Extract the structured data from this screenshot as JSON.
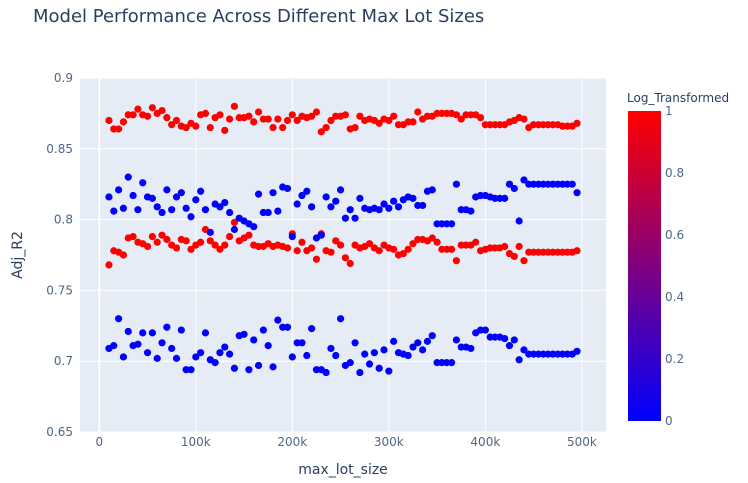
{
  "chart_data": {
    "type": "scatter",
    "title": "Model Performance Across Different Max Lot Sizes",
    "xlabel": "max_lot_size",
    "ylabel": "Adj_R2",
    "xlim": [
      -20000,
      525000
    ],
    "ylim": [
      0.65,
      0.9
    ],
    "x_ticks": [
      {
        "v": 0,
        "label": "0"
      },
      {
        "v": 100000,
        "label": "100k"
      },
      {
        "v": 200000,
        "label": "200k"
      },
      {
        "v": 300000,
        "label": "300k"
      },
      {
        "v": 400000,
        "label": "400k"
      },
      {
        "v": 500000,
        "label": "500k"
      }
    ],
    "y_ticks": [
      {
        "v": 0.65,
        "label": "0.65"
      },
      {
        "v": 0.7,
        "label": "0.7"
      },
      {
        "v": 0.75,
        "label": "0.75"
      },
      {
        "v": 0.8,
        "label": "0.8"
      },
      {
        "v": 0.85,
        "label": "0.85"
      },
      {
        "v": 0.9,
        "label": "0.9"
      }
    ],
    "grid": true,
    "colorbar": {
      "title": "Log_Transformed",
      "range": [
        0,
        1
      ],
      "colorscale": [
        "#0000ff",
        "#ff0000"
      ],
      "ticks": [
        {
          "v": 0,
          "label": "0"
        },
        {
          "v": 0.2,
          "label": "0.2"
        },
        {
          "v": 0.4,
          "label": "0.4"
        },
        {
          "v": 0.6,
          "label": "0.6"
        },
        {
          "v": 0.8,
          "label": "0.8"
        },
        {
          "v": 1,
          "label": "1"
        }
      ]
    },
    "series": [
      {
        "color_value": 1,
        "color": "#ff0000",
        "x": [
          10000,
          15000,
          20000,
          25000,
          30000,
          35000,
          40000,
          45000,
          50000,
          55000,
          60000,
          65000,
          70000,
          75000,
          80000,
          85000,
          90000,
          95000,
          100000,
          105000,
          110000,
          115000,
          120000,
          125000,
          130000,
          135000,
          140000,
          145000,
          150000,
          155000,
          160000,
          165000,
          170000,
          175000,
          180000,
          185000,
          190000,
          195000,
          200000,
          205000,
          210000,
          215000,
          220000,
          225000,
          230000,
          235000,
          240000,
          245000,
          250000,
          255000,
          260000,
          265000,
          270000,
          275000,
          280000,
          285000,
          290000,
          295000,
          300000,
          305000,
          310000,
          315000,
          320000,
          325000,
          330000,
          335000,
          340000,
          345000,
          350000,
          355000,
          360000,
          365000,
          370000,
          375000,
          380000,
          385000,
          390000,
          395000,
          400000,
          405000,
          410000,
          415000,
          420000,
          425000,
          430000,
          435000,
          440000,
          445000,
          450000,
          455000,
          460000,
          465000,
          470000,
          475000,
          480000,
          485000,
          490000,
          495000
        ],
        "y": [
          0.87,
          0.864,
          0.864,
          0.869,
          0.874,
          0.874,
          0.878,
          0.874,
          0.873,
          0.879,
          0.875,
          0.877,
          0.872,
          0.867,
          0.87,
          0.866,
          0.865,
          0.868,
          0.866,
          0.874,
          0.875,
          0.865,
          0.872,
          0.874,
          0.863,
          0.871,
          0.88,
          0.872,
          0.872,
          0.873,
          0.869,
          0.876,
          0.871,
          0.871,
          0.865,
          0.871,
          0.865,
          0.87,
          0.874,
          0.87,
          0.873,
          0.872,
          0.873,
          0.876,
          0.862,
          0.865,
          0.87,
          0.873,
          0.873,
          0.874,
          0.864,
          0.865,
          0.873,
          0.87,
          0.871,
          0.87,
          0.868,
          0.871,
          0.87,
          0.873,
          0.867,
          0.867,
          0.869,
          0.869,
          0.876,
          0.871,
          0.873,
          0.873,
          0.875,
          0.875,
          0.875,
          0.875,
          0.874,
          0.871,
          0.874,
          0.874,
          0.874,
          0.872,
          0.867,
          0.867,
          0.867,
          0.867,
          0.867,
          0.869,
          0.87,
          0.872,
          0.871,
          0.865,
          0.867,
          0.867,
          0.867,
          0.867,
          0.867,
          0.867,
          0.866,
          0.866,
          0.866,
          0.868
        ]
      },
      {
        "color_value": 1,
        "color": "#ff0000",
        "x": [
          10000,
          15000,
          20000,
          25000,
          30000,
          35000,
          40000,
          45000,
          50000,
          55000,
          60000,
          65000,
          70000,
          75000,
          80000,
          85000,
          90000,
          95000,
          100000,
          105000,
          110000,
          115000,
          120000,
          125000,
          130000,
          135000,
          140000,
          145000,
          150000,
          155000,
          160000,
          165000,
          170000,
          175000,
          180000,
          185000,
          190000,
          195000,
          200000,
          205000,
          210000,
          215000,
          220000,
          225000,
          230000,
          235000,
          240000,
          245000,
          250000,
          255000,
          260000,
          265000,
          270000,
          275000,
          280000,
          285000,
          290000,
          295000,
          300000,
          305000,
          310000,
          315000,
          320000,
          325000,
          330000,
          335000,
          340000,
          345000,
          350000,
          355000,
          360000,
          365000,
          370000,
          375000,
          380000,
          385000,
          390000,
          395000,
          400000,
          405000,
          410000,
          415000,
          420000,
          425000,
          430000,
          435000,
          440000,
          445000,
          450000,
          455000,
          460000,
          465000,
          470000,
          475000,
          480000,
          485000,
          490000,
          495000
        ],
        "y": [
          0.768,
          0.778,
          0.777,
          0.775,
          0.787,
          0.788,
          0.784,
          0.783,
          0.781,
          0.788,
          0.784,
          0.789,
          0.786,
          0.782,
          0.78,
          0.786,
          0.785,
          0.779,
          0.782,
          0.784,
          0.793,
          0.785,
          0.782,
          0.779,
          0.782,
          0.788,
          0.798,
          0.785,
          0.787,
          0.789,
          0.782,
          0.781,
          0.781,
          0.783,
          0.781,
          0.782,
          0.781,
          0.78,
          0.79,
          0.778,
          0.784,
          0.778,
          0.78,
          0.772,
          0.79,
          0.778,
          0.777,
          0.785,
          0.782,
          0.773,
          0.769,
          0.782,
          0.78,
          0.781,
          0.783,
          0.78,
          0.778,
          0.782,
          0.78,
          0.779,
          0.775,
          0.776,
          0.779,
          0.783,
          0.786,
          0.786,
          0.785,
          0.787,
          0.784,
          0.779,
          0.779,
          0.779,
          0.771,
          0.782,
          0.782,
          0.782,
          0.784,
          0.778,
          0.779,
          0.78,
          0.78,
          0.78,
          0.781,
          0.776,
          0.774,
          0.781,
          0.771,
          0.777,
          0.777,
          0.777,
          0.777,
          0.777,
          0.777,
          0.777,
          0.777,
          0.777,
          0.777,
          0.778
        ]
      },
      {
        "color_value": 0,
        "color": "#0000ff",
        "x": [
          10000,
          15000,
          20000,
          25000,
          30000,
          35000,
          40000,
          45000,
          50000,
          55000,
          60000,
          65000,
          70000,
          75000,
          80000,
          85000,
          90000,
          95000,
          100000,
          105000,
          110000,
          115000,
          120000,
          125000,
          130000,
          135000,
          140000,
          145000,
          150000,
          155000,
          160000,
          165000,
          170000,
          175000,
          180000,
          185000,
          190000,
          195000,
          200000,
          205000,
          210000,
          215000,
          220000,
          225000,
          230000,
          235000,
          240000,
          245000,
          250000,
          255000,
          260000,
          265000,
          270000,
          275000,
          280000,
          285000,
          290000,
          295000,
          300000,
          305000,
          310000,
          315000,
          320000,
          325000,
          330000,
          335000,
          340000,
          345000,
          350000,
          355000,
          360000,
          365000,
          370000,
          375000,
          380000,
          385000,
          390000,
          395000,
          400000,
          405000,
          410000,
          415000,
          420000,
          425000,
          430000,
          435000,
          440000,
          445000,
          450000,
          455000,
          460000,
          465000,
          470000,
          475000,
          480000,
          485000,
          490000,
          495000
        ],
        "y": [
          0.816,
          0.806,
          0.821,
          0.808,
          0.83,
          0.817,
          0.807,
          0.826,
          0.816,
          0.815,
          0.809,
          0.805,
          0.821,
          0.807,
          0.816,
          0.819,
          0.808,
          0.802,
          0.814,
          0.82,
          0.807,
          0.791,
          0.811,
          0.809,
          0.812,
          0.805,
          0.793,
          0.801,
          0.799,
          0.797,
          0.795,
          0.818,
          0.805,
          0.805,
          0.819,
          0.806,
          0.823,
          0.822,
          0.788,
          0.811,
          0.817,
          0.82,
          0.809,
          0.787,
          0.789,
          0.816,
          0.809,
          0.813,
          0.821,
          0.801,
          0.807,
          0.801,
          0.815,
          0.808,
          0.807,
          0.808,
          0.807,
          0.811,
          0.808,
          0.813,
          0.809,
          0.814,
          0.816,
          0.815,
          0.81,
          0.81,
          0.82,
          0.821,
          0.797,
          0.797,
          0.797,
          0.797,
          0.825,
          0.807,
          0.807,
          0.806,
          0.816,
          0.817,
          0.817,
          0.816,
          0.815,
          0.815,
          0.815,
          0.825,
          0.822,
          0.799,
          0.828,
          0.825,
          0.825,
          0.825,
          0.825,
          0.825,
          0.825,
          0.825,
          0.825,
          0.825,
          0.825,
          0.819
        ]
      },
      {
        "color_value": 0,
        "color": "#0000ff",
        "x": [
          10000,
          15000,
          20000,
          25000,
          30000,
          35000,
          40000,
          45000,
          50000,
          55000,
          60000,
          65000,
          70000,
          75000,
          80000,
          85000,
          90000,
          95000,
          100000,
          105000,
          110000,
          115000,
          120000,
          125000,
          130000,
          135000,
          140000,
          145000,
          150000,
          155000,
          160000,
          165000,
          170000,
          175000,
          180000,
          185000,
          190000,
          195000,
          200000,
          205000,
          210000,
          215000,
          220000,
          225000,
          230000,
          235000,
          240000,
          245000,
          250000,
          255000,
          260000,
          265000,
          270000,
          275000,
          280000,
          285000,
          290000,
          295000,
          300000,
          305000,
          310000,
          315000,
          320000,
          325000,
          330000,
          335000,
          340000,
          345000,
          350000,
          355000,
          360000,
          365000,
          370000,
          375000,
          380000,
          385000,
          390000,
          395000,
          400000,
          405000,
          410000,
          415000,
          420000,
          425000,
          430000,
          435000,
          440000,
          445000,
          450000,
          455000,
          460000,
          465000,
          470000,
          475000,
          480000,
          485000,
          490000,
          495000
        ],
        "y": [
          0.709,
          0.711,
          0.73,
          0.703,
          0.721,
          0.711,
          0.712,
          0.72,
          0.706,
          0.72,
          0.702,
          0.713,
          0.724,
          0.709,
          0.702,
          0.722,
          0.694,
          0.694,
          0.703,
          0.706,
          0.72,
          0.701,
          0.699,
          0.706,
          0.71,
          0.705,
          0.695,
          0.718,
          0.719,
          0.694,
          0.715,
          0.697,
          0.722,
          0.711,
          0.696,
          0.729,
          0.724,
          0.724,
          0.703,
          0.713,
          0.713,
          0.704,
          0.723,
          0.694,
          0.694,
          0.692,
          0.709,
          0.704,
          0.73,
          0.697,
          0.699,
          0.713,
          0.692,
          0.705,
          0.698,
          0.706,
          0.695,
          0.708,
          0.693,
          0.714,
          0.706,
          0.705,
          0.704,
          0.71,
          0.713,
          0.708,
          0.714,
          0.718,
          0.699,
          0.699,
          0.699,
          0.699,
          0.715,
          0.71,
          0.71,
          0.709,
          0.72,
          0.722,
          0.722,
          0.717,
          0.717,
          0.717,
          0.716,
          0.711,
          0.715,
          0.701,
          0.708,
          0.705,
          0.705,
          0.705,
          0.705,
          0.705,
          0.705,
          0.705,
          0.705,
          0.705,
          0.705,
          0.707
        ]
      }
    ]
  }
}
